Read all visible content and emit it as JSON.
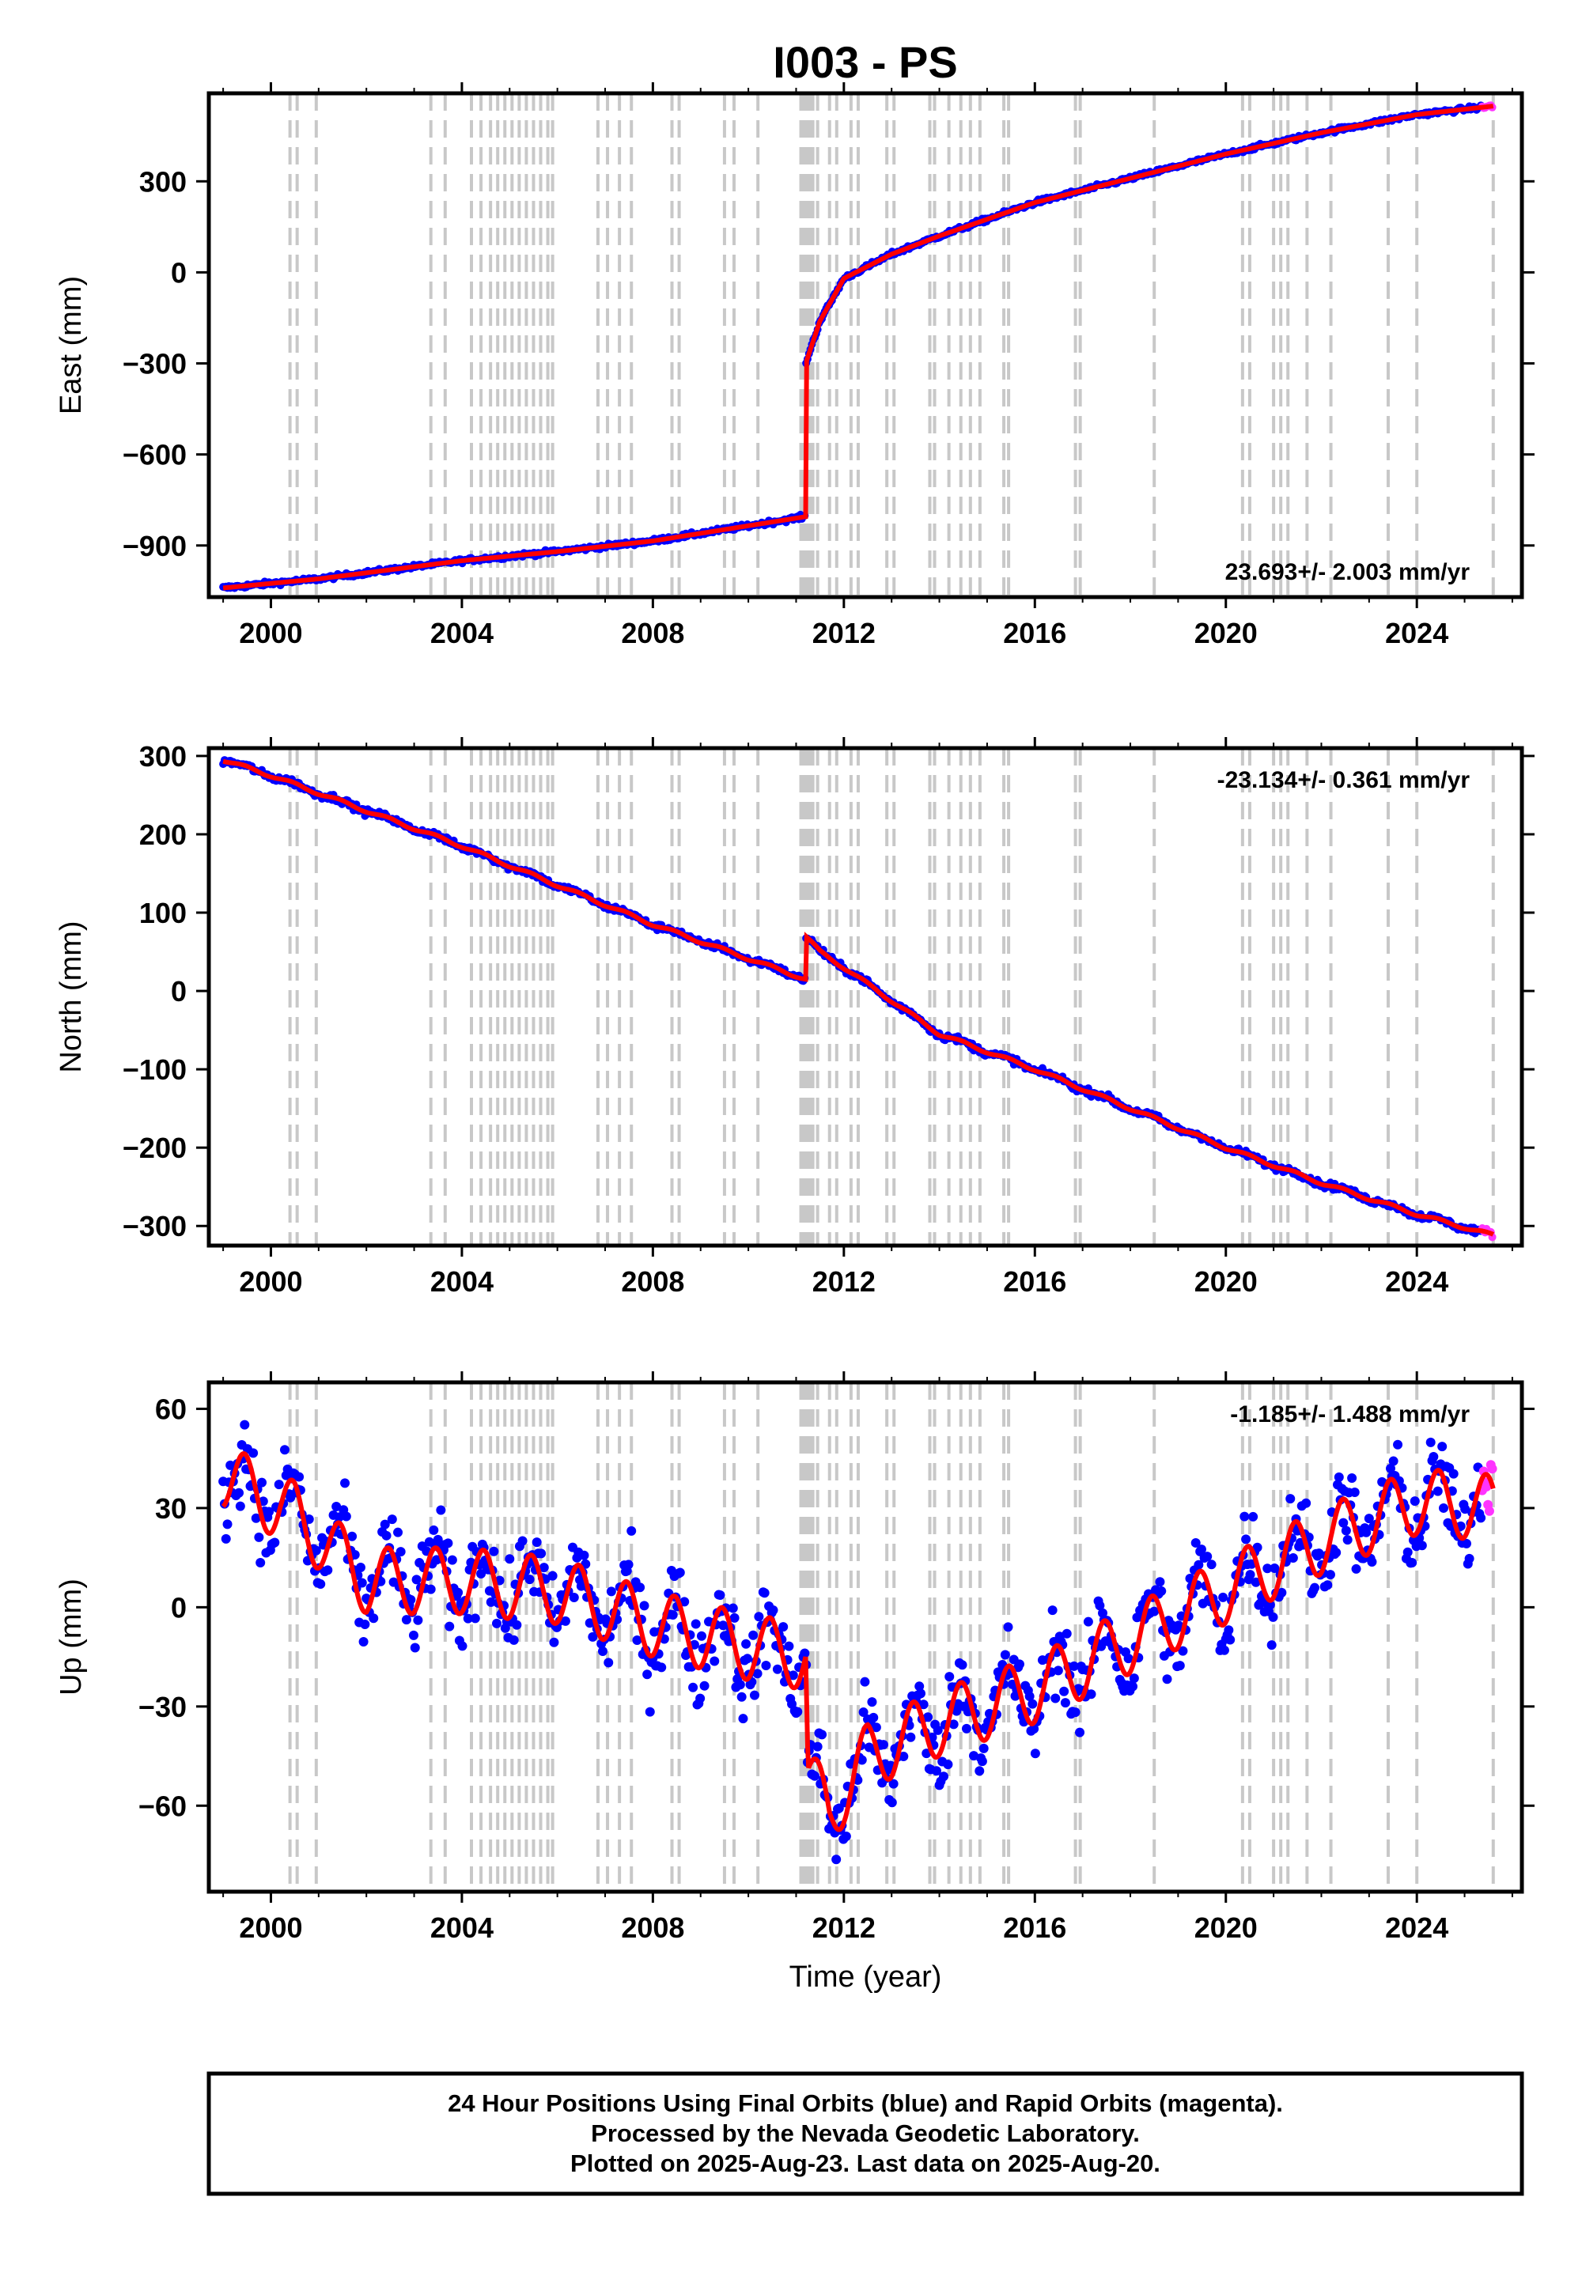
{
  "title": "I003 - PS",
  "colors": {
    "final_orbits": "#0000ff",
    "rapid_orbits": "#ff33ff",
    "model": "#ff0000",
    "equipment_change_lines": "#c8c8c8",
    "frame": "#000000"
  },
  "footer": {
    "line1": "24 Hour Positions Using Final Orbits (blue) and Rapid Orbits (magenta).",
    "line2": "Processed by the Nevada Geodetic Laboratory.",
    "line3": "Plotted on 2025-Aug-23. Last data on 2025-Aug-20."
  },
  "chart_data": {
    "type": "scatter",
    "x_ticks": [
      "2000",
      "2004",
      "2008",
      "2012",
      "2016",
      "2020",
      "2024"
    ],
    "x_tick_values": [
      2000,
      2004,
      2008,
      2012,
      2016,
      2020,
      2024
    ],
    "xlim": [
      1998.7,
      2026.2
    ],
    "xlabel": "Time (year)",
    "equipment_change_years": [
      2000.4,
      2000.55,
      2000.95,
      2003.35,
      2003.65,
      2004.2,
      2004.4,
      2004.6,
      2004.75,
      2004.9,
      2005.05,
      2005.2,
      2005.35,
      2005.5,
      2005.65,
      2005.8,
      2005.9,
      2006.85,
      2007.05,
      2007.3,
      2007.55,
      2008.4,
      2008.55,
      2009.5,
      2009.7,
      2010.2,
      2011.1,
      2011.15,
      2011.2,
      2011.25,
      2011.3,
      2011.35,
      2011.45,
      2011.7,
      2011.85,
      2012.15,
      2012.3,
      2012.9,
      2013.05,
      2013.8,
      2013.9,
      2014.2,
      2014.45,
      2014.65,
      2014.85,
      2015.35,
      2015.45,
      2016.85,
      2016.95,
      2018.5,
      2020.35,
      2020.5,
      2021.0,
      2021.15,
      2021.3,
      2021.7,
      2022.2,
      2023.4,
      2024.0,
      2025.6
    ],
    "panels": [
      {
        "ylabel": "East (mm)",
        "rate": "23.693+/- 2.003 mm/yr",
        "rate_position": "bottom-right",
        "ylim": [
          -1070,
          590
        ],
        "y_ticks": [
          300,
          0,
          -300,
          -600,
          -900
        ],
        "y_tick_labels": [
          "300",
          "0",
          "−300",
          "−600",
          "−900"
        ],
        "trend": [
          [
            1999.0,
            -1040
          ],
          [
            2001.0,
            -1010
          ],
          [
            2004.0,
            -950
          ],
          [
            2006.0,
            -920
          ],
          [
            2008.0,
            -885
          ],
          [
            2010.0,
            -835
          ],
          [
            2011.2,
            -805
          ],
          [
            2011.2,
            -300
          ],
          [
            2011.5,
            -160
          ],
          [
            2012.0,
            -20
          ],
          [
            2013.0,
            60
          ],
          [
            2014.0,
            120
          ],
          [
            2016.0,
            230
          ],
          [
            2018.0,
            310
          ],
          [
            2020.0,
            390
          ],
          [
            2022.0,
            460
          ],
          [
            2024.0,
            520
          ],
          [
            2025.6,
            548
          ]
        ],
        "seasonal_amp": 0,
        "noise": 5,
        "point_radius": 5
      },
      {
        "ylabel": "North (mm)",
        "rate": "-23.134+/- 0.361 mm/yr",
        "rate_position": "top-right",
        "ylim": [
          -325,
          310
        ],
        "y_ticks": [
          300,
          200,
          100,
          0,
          -100,
          -200,
          -300
        ],
        "y_tick_labels": [
          "300",
          "200",
          "100",
          "0",
          "−100",
          "−200",
          "−300"
        ],
        "trend": [
          [
            1999.0,
            295
          ],
          [
            2000.0,
            275
          ],
          [
            2004.0,
            185
          ],
          [
            2008.0,
            85
          ],
          [
            2011.2,
            15
          ],
          [
            2011.2,
            70
          ],
          [
            2011.5,
            50
          ],
          [
            2012.0,
            30
          ],
          [
            2014.0,
            -55
          ],
          [
            2016.0,
            -100
          ],
          [
            2018.0,
            -150
          ],
          [
            2020.0,
            -200
          ],
          [
            2022.0,
            -245
          ],
          [
            2024.0,
            -285
          ],
          [
            2025.6,
            -312
          ]
        ],
        "seasonal_amp": 2,
        "noise": 3,
        "point_radius": 5
      },
      {
        "ylabel": "Up (mm)",
        "rate": "-1.185+/- 1.488 mm/yr",
        "rate_position": "top-right",
        "ylim": [
          -86,
          68
        ],
        "y_ticks": [
          60,
          30,
          0,
          -30,
          -60
        ],
        "y_tick_labels": [
          "60",
          "30",
          "0",
          "−30",
          "−60"
        ],
        "trend": [
          [
            1999.0,
            40
          ],
          [
            2000.5,
            28
          ],
          [
            2002.0,
            8
          ],
          [
            2004.0,
            8
          ],
          [
            2006.0,
            5
          ],
          [
            2008.0,
            -5
          ],
          [
            2010.0,
            -12
          ],
          [
            2011.2,
            -15
          ],
          [
            2011.25,
            -52
          ],
          [
            2011.7,
            -62
          ],
          [
            2012.5,
            -45
          ],
          [
            2014.0,
            -35
          ],
          [
            2016.0,
            -25
          ],
          [
            2018.0,
            -10
          ],
          [
            2020.0,
            5
          ],
          [
            2022.0,
            20
          ],
          [
            2024.0,
            32
          ],
          [
            2025.6,
            30
          ]
        ],
        "seasonal_amp": 10,
        "noise": 9,
        "point_radius": 6
      }
    ]
  }
}
